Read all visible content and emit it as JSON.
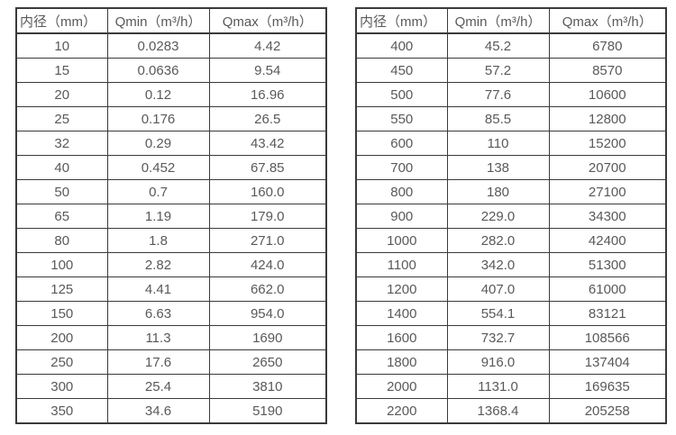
{
  "headers": {
    "diameter": "内径（mm）",
    "qmin": "Qmin（m³/h）",
    "qmax": "Qmax（m³/h）"
  },
  "tables": [
    {
      "rows": [
        [
          "10",
          "0.0283",
          "4.42"
        ],
        [
          "15",
          "0.0636",
          "9.54"
        ],
        [
          "20",
          "0.12",
          "16.96"
        ],
        [
          "25",
          "0.176",
          "26.5"
        ],
        [
          "32",
          "0.29",
          "43.42"
        ],
        [
          "40",
          "0.452",
          "67.85"
        ],
        [
          "50",
          "0.7",
          "160.0"
        ],
        [
          "65",
          "1.19",
          "179.0"
        ],
        [
          "80",
          "1.8",
          "271.0"
        ],
        [
          "100",
          "2.82",
          "424.0"
        ],
        [
          "125",
          "4.41",
          "662.0"
        ],
        [
          "150",
          "6.63",
          "954.0"
        ],
        [
          "200",
          "11.3",
          "1690"
        ],
        [
          "250",
          "17.6",
          "2650"
        ],
        [
          "300",
          "25.4",
          "3810"
        ],
        [
          "350",
          "34.6",
          "5190"
        ]
      ]
    },
    {
      "rows": [
        [
          "400",
          "45.2",
          "6780"
        ],
        [
          "450",
          "57.2",
          "8570"
        ],
        [
          "500",
          "77.6",
          "10600"
        ],
        [
          "550",
          "85.5",
          "12800"
        ],
        [
          "600",
          "110",
          "15200"
        ],
        [
          "700",
          "138",
          "20700"
        ],
        [
          "800",
          "180",
          "27100"
        ],
        [
          "900",
          "229.0",
          "34300"
        ],
        [
          "1000",
          "282.0",
          "42400"
        ],
        [
          "1100",
          "342.0",
          "51300"
        ],
        [
          "1200",
          "407.0",
          "61000"
        ],
        [
          "1400",
          "554.1",
          "83121"
        ],
        [
          "1600",
          "732.7",
          "108566"
        ],
        [
          "1800",
          "916.0",
          "137404"
        ],
        [
          "2000",
          "1131.0",
          "169635"
        ],
        [
          "2200",
          "1368.4",
          "205258"
        ]
      ]
    }
  ],
  "colors": {
    "border": "#3a3a3a",
    "text": "#595959",
    "background": "#ffffff"
  }
}
